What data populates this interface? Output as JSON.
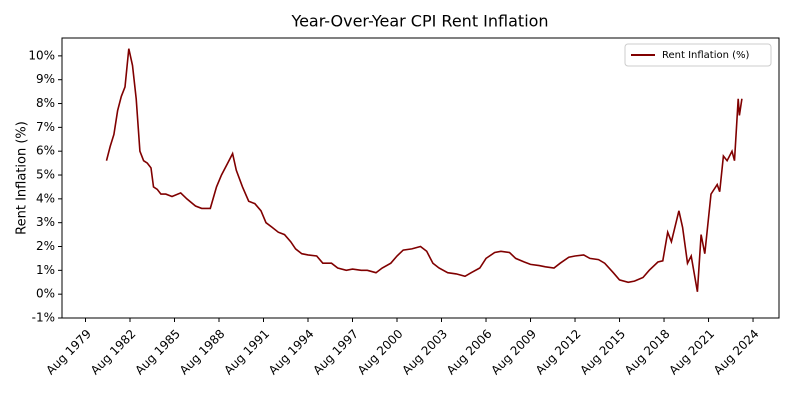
{
  "chart_data": {
    "type": "line",
    "title": "Year-Over-Year CPI Rent Inflation",
    "y_label": "Rent Inflation (%)",
    "legend": "upper right",
    "x": [
      "1981-01",
      "1981-04",
      "1981-07",
      "1981-10",
      "1982-01",
      "1982-04",
      "1982-07",
      "1982-10",
      "1983-01",
      "1983-04",
      "1983-07",
      "1983-10",
      "1984-01",
      "1984-03",
      "1984-06",
      "1984-09",
      "1985-01",
      "1985-06",
      "1986-01",
      "1986-06",
      "1987-01",
      "1987-06",
      "1988-01",
      "1988-06",
      "1988-10",
      "1989-03",
      "1989-07",
      "1989-10",
      "1990-03",
      "1990-08",
      "1991-01",
      "1991-06",
      "1991-10",
      "1992-03",
      "1992-08",
      "1993-01",
      "1993-06",
      "1993-10",
      "1994-03",
      "1994-08",
      "1995-03",
      "1995-08",
      "1996-03",
      "1996-08",
      "1997-03",
      "1997-08",
      "1998-03",
      "1998-08",
      "1999-03",
      "1999-08",
      "2000-03",
      "2000-08",
      "2001-01",
      "2001-08",
      "2002-03",
      "2002-08",
      "2003-01",
      "2003-06",
      "2004-01",
      "2004-08",
      "2005-03",
      "2005-08",
      "2006-03",
      "2006-08",
      "2007-03",
      "2007-08",
      "2008-03",
      "2008-08",
      "2009-03",
      "2009-08",
      "2010-03",
      "2010-08",
      "2011-03",
      "2011-08",
      "2012-03",
      "2012-08",
      "2013-03",
      "2013-08",
      "2014-03",
      "2014-08",
      "2015-03",
      "2015-08",
      "2016-03",
      "2016-08",
      "2017-03",
      "2017-08",
      "2018-03",
      "2018-07",
      "2018-11",
      "2019-02",
      "2019-08",
      "2019-11",
      "2020-03",
      "2020-06",
      "2020-11",
      "2021-02",
      "2021-05",
      "2021-10",
      "2022-03",
      "2022-05",
      "2022-08",
      "2022-11",
      "2023-03",
      "2023-05",
      "2023-08",
      "2023-09",
      "2023-11"
    ],
    "series": [
      {
        "name": "Rent Inflation (%)",
        "color": "#800000",
        "values": [
          5.6,
          6.2,
          6.7,
          7.7,
          8.3,
          8.7,
          10.3,
          9.6,
          8.2,
          6.0,
          5.6,
          5.5,
          5.3,
          4.5,
          4.4,
          4.2,
          4.2,
          4.1,
          4.25,
          4.0,
          3.7,
          3.6,
          3.6,
          4.5,
          5.0,
          5.5,
          5.9,
          5.2,
          4.5,
          3.9,
          3.8,
          3.5,
          3.0,
          2.8,
          2.6,
          2.5,
          2.2,
          1.9,
          1.7,
          1.65,
          1.6,
          1.3,
          1.3,
          1.1,
          1.0,
          1.05,
          1.0,
          1.0,
          0.9,
          1.1,
          1.3,
          1.6,
          1.85,
          1.9,
          2.0,
          1.8,
          1.3,
          1.1,
          0.9,
          0.85,
          0.75,
          0.9,
          1.1,
          1.5,
          1.75,
          1.8,
          1.75,
          1.5,
          1.35,
          1.25,
          1.2,
          1.15,
          1.1,
          1.3,
          1.55,
          1.6,
          1.65,
          1.5,
          1.45,
          1.3,
          0.9,
          0.6,
          0.5,
          0.55,
          0.7,
          1.0,
          1.35,
          1.4,
          2.6,
          2.2,
          3.5,
          2.8,
          1.3,
          1.6,
          0.1,
          2.5,
          1.7,
          4.2,
          4.6,
          4.3,
          5.8,
          5.6,
          6.0,
          5.6,
          8.2,
          7.5,
          8.2
        ]
      }
    ],
    "xlim": [
      "1978-01",
      "2026-05"
    ],
    "xticks": [
      {
        "value": "1979-08",
        "label": "Aug 1979"
      },
      {
        "value": "1982-08",
        "label": "Aug 1982"
      },
      {
        "value": "1985-08",
        "label": "Aug 1985"
      },
      {
        "value": "1988-08",
        "label": "Aug 1988"
      },
      {
        "value": "1991-08",
        "label": "Aug 1991"
      },
      {
        "value": "1994-08",
        "label": "Aug 1994"
      },
      {
        "value": "1997-08",
        "label": "Aug 1997"
      },
      {
        "value": "2000-08",
        "label": "Aug 2000"
      },
      {
        "value": "2003-08",
        "label": "Aug 2003"
      },
      {
        "value": "2006-08",
        "label": "Aug 2006"
      },
      {
        "value": "2009-08",
        "label": "Aug 2009"
      },
      {
        "value": "2012-08",
        "label": "Aug 2012"
      },
      {
        "value": "2015-08",
        "label": "Aug 2015"
      },
      {
        "value": "2018-08",
        "label": "Aug 2018"
      },
      {
        "value": "2021-08",
        "label": "Aug 2021"
      },
      {
        "value": "2024-08",
        "label": "Aug 2024"
      }
    ],
    "ylim": [
      -1,
      10.75
    ],
    "yticks": [
      {
        "value": -1,
        "label": "-1%"
      },
      {
        "value": 0,
        "label": "0%"
      },
      {
        "value": 1,
        "label": "1%"
      },
      {
        "value": 2,
        "label": "2%"
      },
      {
        "value": 3,
        "label": "3%"
      },
      {
        "value": 4,
        "label": "4%"
      },
      {
        "value": 5,
        "label": "5%"
      },
      {
        "value": 6,
        "label": "6%"
      },
      {
        "value": 7,
        "label": "7%"
      },
      {
        "value": 8,
        "label": "8%"
      },
      {
        "value": 9,
        "label": "9%"
      },
      {
        "value": 10,
        "label": "10%"
      }
    ]
  }
}
